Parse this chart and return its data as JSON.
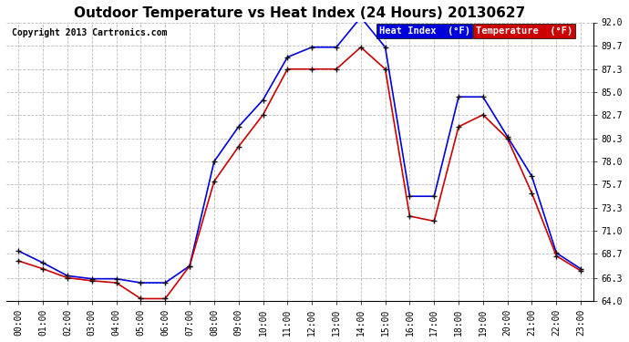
{
  "title": "Outdoor Temperature vs Heat Index (24 Hours) 20130627",
  "copyright": "Copyright 2013 Cartronics.com",
  "legend_heat_index": "Heat Index  (°F)",
  "legend_temperature": "Temperature  (°F)",
  "hours": [
    "00:00",
    "01:00",
    "02:00",
    "03:00",
    "04:00",
    "05:00",
    "06:00",
    "07:00",
    "08:00",
    "09:00",
    "10:00",
    "11:00",
    "12:00",
    "13:00",
    "14:00",
    "15:00",
    "16:00",
    "17:00",
    "18:00",
    "19:00",
    "20:00",
    "21:00",
    "22:00",
    "23:00"
  ],
  "heat_index": [
    69.0,
    67.8,
    66.5,
    66.2,
    66.2,
    65.8,
    65.8,
    67.5,
    78.0,
    81.5,
    84.2,
    88.5,
    89.5,
    89.5,
    92.5,
    89.5,
    74.5,
    74.5,
    84.5,
    84.5,
    80.5,
    76.5,
    68.8,
    67.2
  ],
  "temperature": [
    68.0,
    67.2,
    66.3,
    66.0,
    65.8,
    64.2,
    64.2,
    67.5,
    76.0,
    79.5,
    82.7,
    87.3,
    87.3,
    87.3,
    89.5,
    87.3,
    72.5,
    72.0,
    81.5,
    82.7,
    80.3,
    74.8,
    68.5,
    67.0
  ],
  "heat_index_color": "#0000dd",
  "temperature_color": "#cc0000",
  "background_color": "#ffffff",
  "grid_color": "#bbbbbb",
  "plot_bg_color": "#ffffff",
  "ylim_min": 64.0,
  "ylim_max": 92.0,
  "yticks": [
    64.0,
    66.3,
    68.7,
    71.0,
    73.3,
    75.7,
    78.0,
    80.3,
    82.7,
    85.0,
    87.3,
    89.7,
    92.0
  ],
  "title_fontsize": 11,
  "copyright_fontsize": 7,
  "legend_fontsize": 7.5,
  "tick_fontsize": 7,
  "marker": "+",
  "marker_size": 5,
  "marker_color": "#111111",
  "line_width": 1.2
}
